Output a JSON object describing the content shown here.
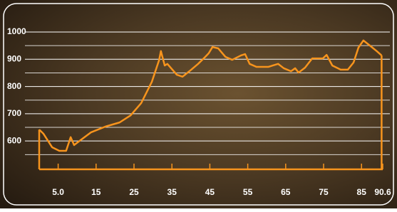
{
  "chart_data": {
    "type": "line",
    "x": [
      0,
      1.1,
      3.4,
      5.3,
      7.1,
      8.3,
      9.2,
      10.9,
      13.7,
      17.5,
      21.2,
      24.1,
      26.9,
      29.7,
      31.6,
      32.1,
      33.1,
      33.8,
      36.3,
      37.8,
      39.6,
      41.9,
      43.8,
      44.7,
      45.7,
      47.2,
      49.1,
      50.9,
      53.2,
      54.3,
      55.5,
      57.3,
      60.4,
      63,
      64.5,
      66.4,
      67.5,
      68.4,
      70.1,
      72,
      74.8,
      75.8,
      77.3,
      79.5,
      81.4,
      82.9,
      84.2,
      85.5,
      87.4,
      89,
      90.3
    ],
    "series": [
      {
        "color": "#f7941d",
        "values": [
          642,
          627,
          577,
          564,
          564,
          614,
          585,
          603,
          632,
          653,
          668,
          694,
          739,
          817,
          896,
          930,
          877,
          883,
          843,
          836,
          856,
          883,
          909,
          922,
          945,
          940,
          909,
          898,
          914,
          919,
          883,
          872,
          872,
          883,
          867,
          856,
          867,
          851,
          869,
          903,
          903,
          916,
          877,
          862,
          862,
          888,
          943,
          969,
          948,
          930,
          914
        ]
      }
    ],
    "xlim": [
      0,
      90.6
    ],
    "xticks": [
      {
        "value": 5,
        "label": "5.0"
      },
      15,
      25,
      35,
      45,
      55,
      65,
      75,
      85,
      90.6
    ],
    "ylim": [
      496,
      1000
    ],
    "yticks": [
      600,
      700,
      800,
      900,
      1000
    ],
    "minor_yticks": [
      550,
      650,
      750,
      850,
      950
    ],
    "grid": true
  }
}
